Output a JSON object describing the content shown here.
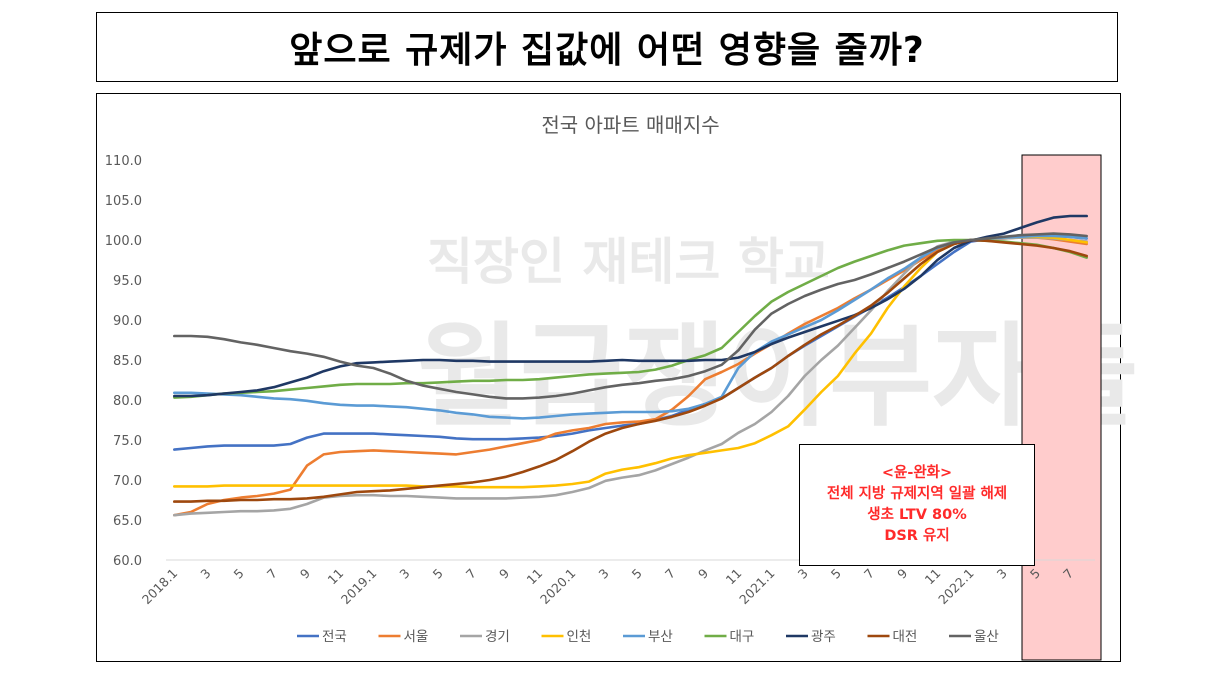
{
  "page_title": "앞으로 규제가 집값에 어떤 영향을 줄까?",
  "watermark": {
    "line1": "직장인 재테크 학교",
    "line2": "월급쟁이부자들"
  },
  "note": {
    "lines": [
      "<윤-완화>",
      "전체 지방 규제지역 일괄 해제",
      "생초 LTV 80%",
      "DSR 유지"
    ]
  },
  "colors": {
    "highlight": "#ffcccc",
    "note_text": "#ff2a2a"
  },
  "chart_data": {
    "type": "line",
    "title": "전국 아파트 매매지수",
    "ylim": [
      60,
      110
    ],
    "yticks": [
      "60.0",
      "65.0",
      "70.0",
      "75.0",
      "80.0",
      "85.0",
      "90.0",
      "95.0",
      "100.0",
      "105.0",
      "110.0"
    ],
    "x_labels": [
      "2018.1",
      "3",
      "5",
      "7",
      "9",
      "11",
      "2019.1",
      "3",
      "5",
      "7",
      "9",
      "11",
      "2020.1",
      "3",
      "5",
      "7",
      "9",
      "11",
      "2021.1",
      "3",
      "5",
      "7",
      "9",
      "11",
      "2022.1",
      "3",
      "5",
      "7"
    ],
    "x_months": [
      "2018.1",
      "2018.2",
      "2018.3",
      "2018.4",
      "2018.5",
      "2018.6",
      "2018.7",
      "2018.8",
      "2018.9",
      "2018.10",
      "2018.11",
      "2018.12",
      "2019.1",
      "2019.2",
      "2019.3",
      "2019.4",
      "2019.5",
      "2019.6",
      "2019.7",
      "2019.8",
      "2019.9",
      "2019.10",
      "2019.11",
      "2019.12",
      "2020.1",
      "2020.2",
      "2020.3",
      "2020.4",
      "2020.5",
      "2020.6",
      "2020.7",
      "2020.8",
      "2020.9",
      "2020.10",
      "2020.11",
      "2020.12",
      "2021.1",
      "2021.2",
      "2021.3",
      "2021.4",
      "2021.5",
      "2021.6",
      "2021.7",
      "2021.8",
      "2021.9",
      "2021.10",
      "2021.11",
      "2021.12",
      "2022.1",
      "2022.2",
      "2022.3",
      "2022.4",
      "2022.5",
      "2022.6",
      "2022.7",
      "2022.8"
    ],
    "grid": "none",
    "legend_position": "bottom",
    "highlight_from": "2022.5",
    "series": [
      {
        "name": "전국",
        "color": "#4472c4",
        "values": [
          73.8,
          74.0,
          74.2,
          74.3,
          74.3,
          74.3,
          74.3,
          74.5,
          75.3,
          75.8,
          75.8,
          75.8,
          75.8,
          75.7,
          75.6,
          75.5,
          75.4,
          75.2,
          75.1,
          75.1,
          75.1,
          75.2,
          75.3,
          75.5,
          75.8,
          76.2,
          76.5,
          76.8,
          77.0,
          77.5,
          78.0,
          78.8,
          79.5,
          80.2,
          81.5,
          82.8,
          84.0,
          85.5,
          86.8,
          88.0,
          89.2,
          90.4,
          91.6,
          92.8,
          94.1,
          95.5,
          97.0,
          98.5,
          99.8,
          100.1,
          100.3,
          100.4,
          100.5,
          100.5,
          100.4,
          100.2
        ]
      },
      {
        "name": "서울",
        "color": "#ed7d31",
        "values": [
          65.6,
          66.0,
          67.0,
          67.5,
          67.8,
          68.0,
          68.3,
          68.8,
          71.8,
          73.2,
          73.5,
          73.6,
          73.7,
          73.6,
          73.5,
          73.4,
          73.3,
          73.2,
          73.5,
          73.8,
          74.2,
          74.6,
          75.0,
          75.8,
          76.2,
          76.5,
          77.0,
          77.2,
          77.3,
          77.6,
          78.8,
          80.5,
          82.6,
          83.5,
          84.5,
          85.8,
          87.0,
          88.3,
          89.5,
          90.5,
          91.5,
          92.7,
          93.8,
          95.0,
          96.2,
          97.5,
          98.7,
          99.6,
          100.0,
          100.1,
          100.2,
          100.3,
          100.3,
          100.1,
          99.8,
          99.5
        ]
      },
      {
        "name": "경기",
        "color": "#a5a5a5",
        "values": [
          65.6,
          65.8,
          65.9,
          66.0,
          66.1,
          66.1,
          66.2,
          66.4,
          67.0,
          67.8,
          68.0,
          68.1,
          68.1,
          68.0,
          68.0,
          67.9,
          67.8,
          67.7,
          67.7,
          67.7,
          67.7,
          67.8,
          67.9,
          68.1,
          68.5,
          69.0,
          69.9,
          70.3,
          70.6,
          71.2,
          72.0,
          72.8,
          73.7,
          74.5,
          75.9,
          77.0,
          78.5,
          80.5,
          83.0,
          85.0,
          86.8,
          89.0,
          91.2,
          93.6,
          95.8,
          97.8,
          99.2,
          99.8,
          100.0,
          100.1,
          100.2,
          100.3,
          100.3,
          100.2,
          100.0,
          99.8
        ]
      },
      {
        "name": "인천",
        "color": "#ffc000",
        "values": [
          69.2,
          69.2,
          69.2,
          69.3,
          69.3,
          69.3,
          69.3,
          69.3,
          69.3,
          69.3,
          69.3,
          69.3,
          69.3,
          69.3,
          69.3,
          69.2,
          69.2,
          69.2,
          69.1,
          69.1,
          69.1,
          69.1,
          69.2,
          69.3,
          69.5,
          69.8,
          70.8,
          71.3,
          71.6,
          72.1,
          72.7,
          73.1,
          73.4,
          73.7,
          74.0,
          74.6,
          75.6,
          76.7,
          78.8,
          81.0,
          83.0,
          85.8,
          88.3,
          91.5,
          94.2,
          96.5,
          98.5,
          99.5,
          100.0,
          100.2,
          100.3,
          100.4,
          100.4,
          100.3,
          100.0,
          99.7
        ]
      },
      {
        "name": "부산",
        "color": "#5b9bd5",
        "values": [
          80.9,
          80.9,
          80.8,
          80.7,
          80.6,
          80.4,
          80.2,
          80.1,
          79.9,
          79.6,
          79.4,
          79.3,
          79.3,
          79.2,
          79.1,
          78.9,
          78.7,
          78.4,
          78.2,
          77.9,
          77.8,
          77.7,
          77.8,
          78.0,
          78.2,
          78.3,
          78.4,
          78.5,
          78.5,
          78.5,
          78.6,
          78.9,
          79.5,
          80.4,
          84.0,
          86.0,
          87.3,
          88.2,
          89.1,
          90.0,
          91.2,
          92.5,
          93.8,
          95.2,
          96.4,
          97.8,
          99.0,
          99.7,
          100.0,
          100.2,
          100.3,
          100.4,
          100.5,
          100.5,
          100.4,
          100.2
        ]
      },
      {
        "name": "대구",
        "color": "#70ad47",
        "values": [
          80.3,
          80.4,
          80.6,
          80.8,
          80.9,
          81.0,
          81.1,
          81.3,
          81.5,
          81.7,
          81.9,
          82.0,
          82.0,
          82.0,
          82.1,
          82.1,
          82.2,
          82.3,
          82.4,
          82.4,
          82.5,
          82.5,
          82.6,
          82.8,
          83.0,
          83.2,
          83.3,
          83.4,
          83.5,
          83.8,
          84.3,
          85.0,
          85.6,
          86.5,
          88.5,
          90.5,
          92.3,
          93.5,
          94.5,
          95.5,
          96.5,
          97.3,
          98.0,
          98.7,
          99.3,
          99.6,
          99.9,
          100.0,
          100.0,
          99.9,
          99.8,
          99.6,
          99.4,
          99.0,
          98.5,
          97.8
        ]
      },
      {
        "name": "광주",
        "color": "#1f3864",
        "values": [
          80.5,
          80.5,
          80.6,
          80.8,
          81.0,
          81.2,
          81.6,
          82.2,
          82.8,
          83.6,
          84.2,
          84.6,
          84.7,
          84.8,
          84.9,
          85.0,
          85.0,
          84.9,
          84.9,
          84.8,
          84.8,
          84.8,
          84.8,
          84.8,
          84.8,
          84.8,
          84.9,
          85.0,
          84.9,
          84.9,
          84.9,
          84.9,
          85.0,
          85.0,
          85.3,
          86.0,
          87.0,
          87.8,
          88.5,
          89.2,
          89.9,
          90.6,
          91.5,
          92.6,
          93.9,
          95.5,
          97.5,
          99.0,
          99.9,
          100.4,
          100.8,
          101.5,
          102.2,
          102.8,
          103.0,
          103.0
        ]
      },
      {
        "name": "대전",
        "color": "#9e480e",
        "values": [
          67.3,
          67.3,
          67.4,
          67.4,
          67.5,
          67.5,
          67.6,
          67.6,
          67.7,
          67.9,
          68.2,
          68.5,
          68.6,
          68.7,
          68.9,
          69.1,
          69.3,
          69.5,
          69.7,
          70.0,
          70.4,
          71.0,
          71.7,
          72.5,
          73.6,
          74.8,
          75.8,
          76.5,
          77.0,
          77.4,
          77.9,
          78.5,
          79.3,
          80.2,
          81.5,
          82.8,
          84.0,
          85.5,
          86.9,
          88.2,
          89.3,
          90.5,
          91.8,
          93.4,
          95.2,
          97.0,
          98.5,
          99.5,
          100.0,
          99.9,
          99.7,
          99.5,
          99.3,
          99.0,
          98.6,
          98.0
        ]
      },
      {
        "name": "울산",
        "color": "#636363",
        "values": [
          88.0,
          88.0,
          87.9,
          87.6,
          87.2,
          86.9,
          86.5,
          86.1,
          85.8,
          85.4,
          84.8,
          84.3,
          84.0,
          83.3,
          82.4,
          81.8,
          81.4,
          81.0,
          80.7,
          80.4,
          80.2,
          80.2,
          80.3,
          80.5,
          80.8,
          81.2,
          81.6,
          81.9,
          82.1,
          82.4,
          82.6,
          83.0,
          83.6,
          84.4,
          86.2,
          88.8,
          90.8,
          92.0,
          93.0,
          93.8,
          94.5,
          95.0,
          95.7,
          96.5,
          97.3,
          98.2,
          99.1,
          99.7,
          100.0,
          100.2,
          100.4,
          100.6,
          100.7,
          100.8,
          100.7,
          100.5
        ]
      }
    ]
  }
}
